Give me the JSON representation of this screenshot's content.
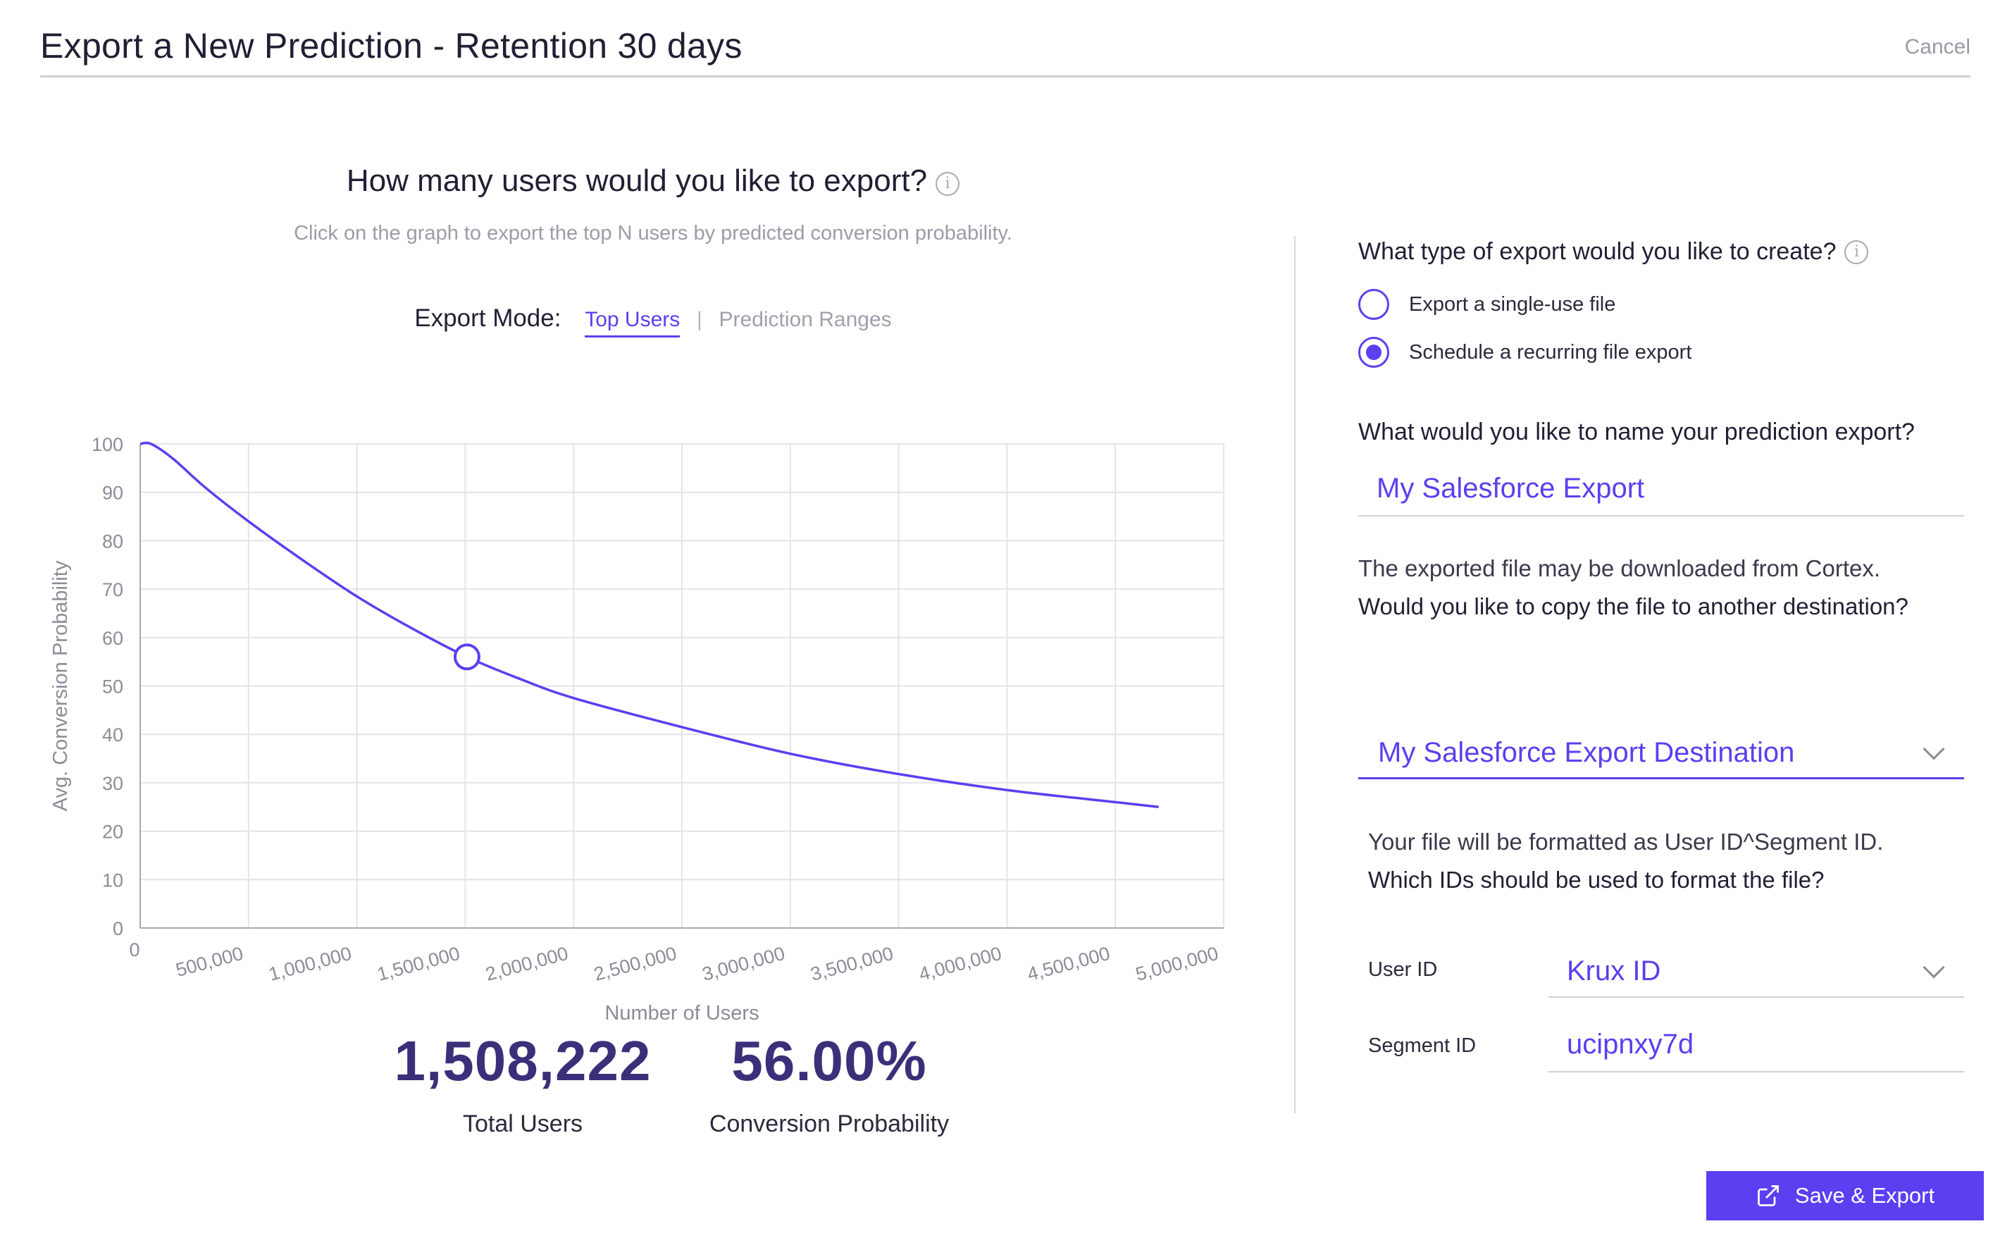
{
  "header": {
    "title": "Export a New Prediction - Retention 30 days",
    "cancel_label": "Cancel"
  },
  "left": {
    "question": "How many users would you like to export?",
    "subtitle": "Click on the graph to export the top N users by predicted conversion probability.",
    "export_mode": {
      "label": "Export Mode:",
      "options": [
        "Top Users",
        "Prediction Ranges"
      ],
      "selected": "Top Users",
      "separator": "|"
    },
    "stats": {
      "total_users_value": "1,508,222",
      "total_users_caption": "Total Users",
      "conversion_value": "56.00%",
      "conversion_caption": "Conversion Probability"
    }
  },
  "chart_data": {
    "type": "line",
    "title": "",
    "xlabel": "Number of Users",
    "ylabel": "Avg. Conversion Probability",
    "xlim": [
      0,
      5000000
    ],
    "ylim": [
      0,
      100
    ],
    "x_ticks": [
      0,
      500000,
      1000000,
      1500000,
      2000000,
      2500000,
      3000000,
      3500000,
      4000000,
      4500000,
      5000000
    ],
    "x_tick_labels": [
      "0",
      "500,000",
      "1,000,000",
      "1,500,000",
      "2,000,000",
      "2,500,000",
      "3,000,000",
      "3,500,000",
      "4,000,000",
      "4,500,000",
      "5,000,000"
    ],
    "y_ticks": [
      0,
      10,
      20,
      30,
      40,
      50,
      60,
      70,
      80,
      90,
      100
    ],
    "y_tick_labels": [
      "0",
      "10",
      "20",
      "30",
      "40",
      "50",
      "60",
      "70",
      "80",
      "90",
      "100"
    ],
    "grid": true,
    "series": [
      {
        "x": [
          0,
          50000,
          150000,
          300000,
          500000,
          750000,
          1000000,
          1250000,
          1508222,
          1750000,
          2000000,
          2500000,
          3000000,
          3500000,
          4000000,
          4500000,
          4700000
        ],
        "y": [
          100,
          100,
          97,
          91,
          84,
          76,
          68.5,
          62,
          56,
          51.5,
          47.5,
          41.5,
          36,
          31.8,
          28.5,
          26,
          25
        ]
      }
    ],
    "selected_point": {
      "x": 1508222,
      "y": 56
    },
    "line_color": "#5b3ff0"
  },
  "right": {
    "export_type_question": "What type of export would you like to create?",
    "export_type_options": [
      "Export a single-use file",
      "Schedule a recurring file export"
    ],
    "export_type_selected": "Schedule a recurring file export",
    "name_question": "What would you like to name your prediction export?",
    "name_value": "My Salesforce Export",
    "destination_text_1": "The exported file may be downloaded from Cortex.",
    "destination_text_2": "Would you like to copy the file to another destination?",
    "destination_value": "My Salesforce Export Destination",
    "format_text_1": "Your file will be formatted as User ID^Segment ID.",
    "format_text_2": "Which IDs should be used to format the file?",
    "user_id_label": "User ID",
    "user_id_value": "Krux ID",
    "segment_id_label": "Segment ID",
    "segment_id_value": "ucipnxy7d"
  },
  "footer": {
    "save_label": "Save & Export"
  },
  "colors": {
    "accent": "#5b3ff0",
    "stat_value": "#3b2f7a"
  }
}
